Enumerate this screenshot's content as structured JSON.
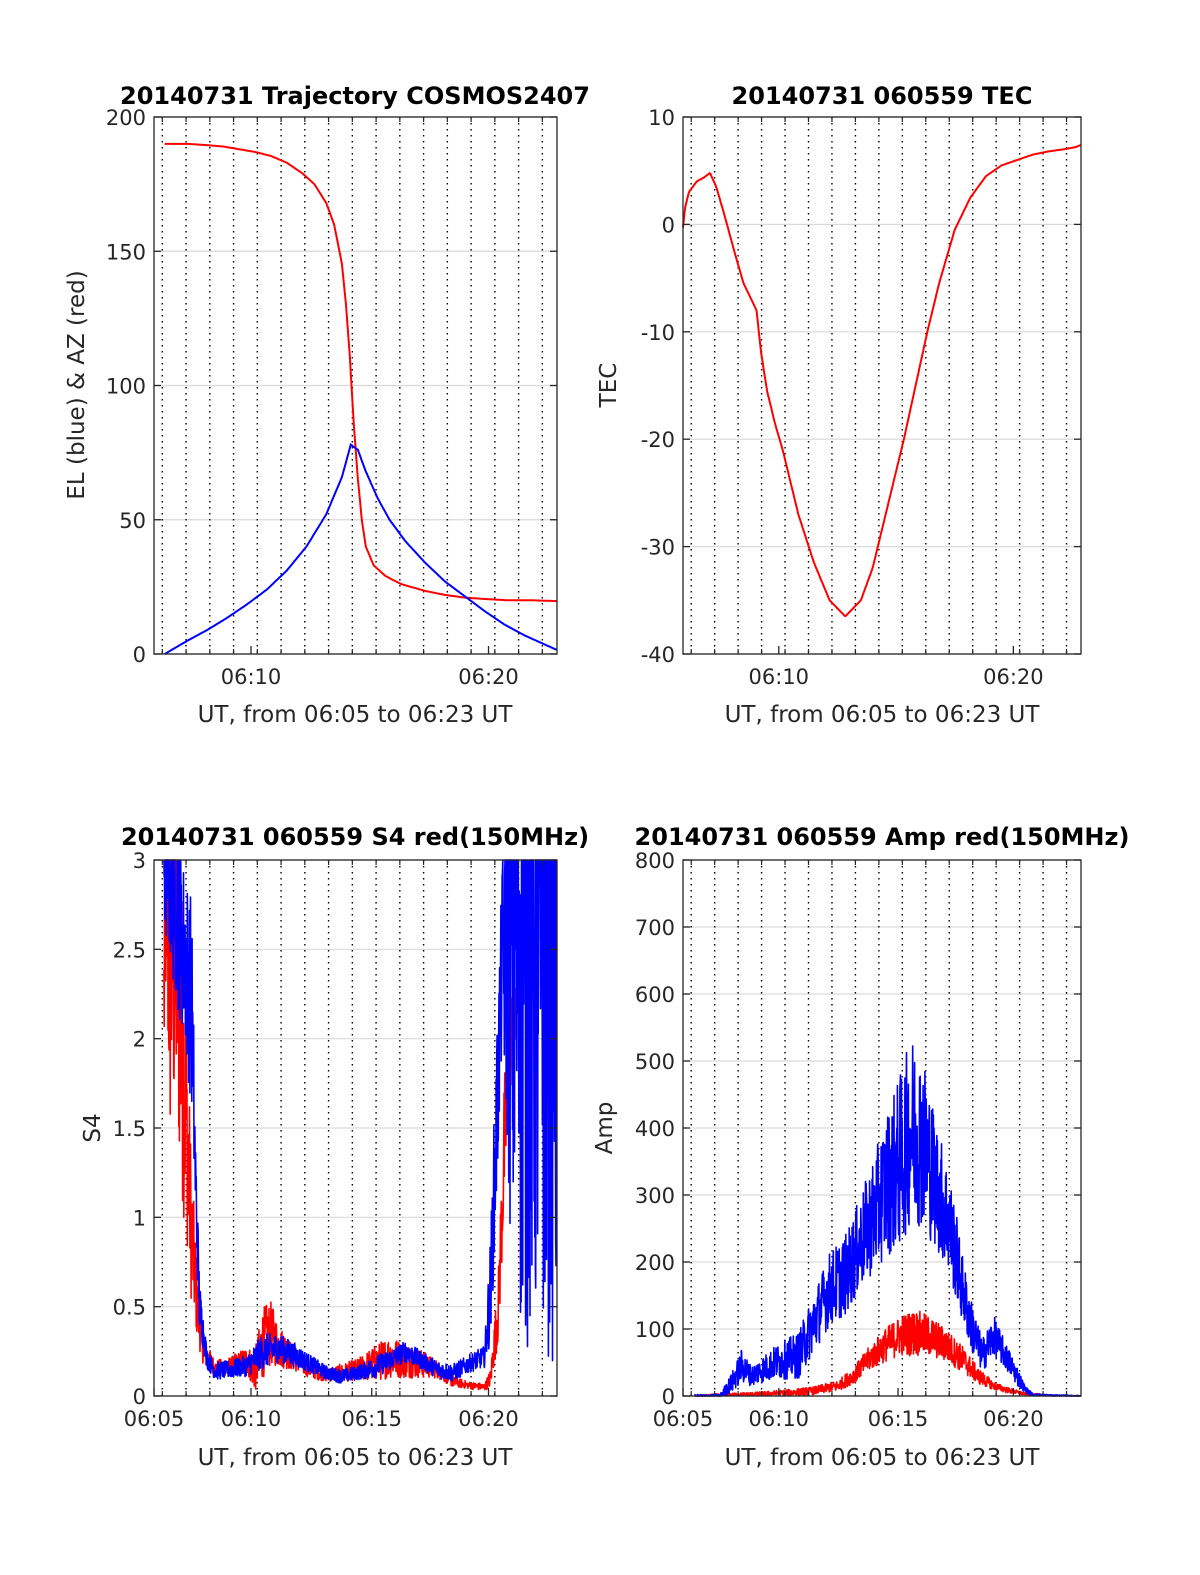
{
  "figure": {
    "colors": {
      "el": "#0000ff",
      "az": "#ff0000",
      "tec": "#ff0000",
      "series_red": "#ff0000",
      "series_blue": "#0000ff",
      "grid": "#d9d9d9",
      "minor_grid": "#000000"
    }
  },
  "chart_data": [
    {
      "id": "trajectory",
      "type": "line",
      "title": "20140731 Trajectory COSMOS2407",
      "xlabel": "UT, from 06:05 to 06:23 UT",
      "ylabel": "EL (blue) & AZ (red)",
      "xlim": [
        365,
        1383
      ],
      "ylim": [
        0,
        200
      ],
      "xticks": [
        {
          "v": 610,
          "label": "06:10"
        },
        {
          "v": 1210,
          "label": "06:20"
        }
      ],
      "yticks": [
        {
          "v": 0,
          "label": "0"
        },
        {
          "v": 50,
          "label": "50"
        },
        {
          "v": 100,
          "label": "100"
        },
        {
          "v": 150,
          "label": "150"
        },
        {
          "v": 200,
          "label": "200"
        }
      ],
      "minor_x": [
        386,
        446,
        506,
        566,
        626,
        686,
        746,
        806,
        866,
        926,
        986,
        1046,
        1106,
        1166,
        1226,
        1286,
        1346
      ],
      "grid": "on",
      "series": [
        {
          "name": "AZ",
          "color": "#ff0000",
          "style": "line",
          "x": [
            392,
            450,
            500,
            540,
            580,
            620,
            660,
            700,
            740,
            770,
            800,
            820,
            840,
            850,
            860,
            870,
            880,
            890,
            900,
            920,
            950,
            990,
            1050,
            1100,
            1150,
            1200,
            1260,
            1320,
            1383
          ],
          "y": [
            190,
            190,
            189.5,
            189,
            188,
            187,
            185.5,
            183,
            179,
            175,
            168,
            160,
            145,
            130,
            110,
            85,
            65,
            50,
            40,
            33,
            29,
            26,
            23.5,
            22,
            21,
            20.5,
            20,
            20,
            19.7
          ]
        },
        {
          "name": "EL",
          "color": "#0000ff",
          "style": "line",
          "x": [
            392,
            450,
            500,
            550,
            600,
            650,
            700,
            750,
            800,
            840,
            862,
            880,
            900,
            930,
            960,
            1000,
            1050,
            1100,
            1150,
            1200,
            1250,
            1300,
            1383
          ],
          "y": [
            0,
            5,
            9,
            13.5,
            18.5,
            24,
            31,
            40,
            52,
            66,
            78,
            76,
            68,
            58,
            50,
            42,
            34,
            27,
            21.5,
            16,
            11,
            7,
            1.5
          ]
        }
      ]
    },
    {
      "id": "tec",
      "type": "line",
      "title": "20140731 060559 TEC",
      "xlabel": "UT, from 06:05 to 06:23 UT",
      "ylabel": "TEC",
      "xlim": [
        365,
        1383
      ],
      "ylim": [
        -40,
        10
      ],
      "xticks": [
        {
          "v": 610,
          "label": "06:10"
        },
        {
          "v": 1210,
          "label": "06:20"
        }
      ],
      "yticks": [
        {
          "v": -40,
          "label": "-40"
        },
        {
          "v": -30,
          "label": "-30"
        },
        {
          "v": -20,
          "label": "-20"
        },
        {
          "v": -10,
          "label": "-10"
        },
        {
          "v": 0,
          "label": "0"
        },
        {
          "v": 10,
          "label": "10"
        }
      ],
      "minor_x": [
        386,
        446,
        506,
        566,
        626,
        686,
        746,
        806,
        866,
        926,
        986,
        1046,
        1106,
        1166,
        1226,
        1286,
        1346
      ],
      "grid": "on",
      "series": [
        {
          "name": "TEC",
          "color": "#ff0000",
          "style": "line",
          "x": [
            365,
            370,
            380,
            400,
            420,
            434,
            450,
            470,
            500,
            520,
            540,
            553,
            565,
            580,
            600,
            620,
            640,
            660,
            700,
            740,
            780,
            820,
            850,
            870,
            890,
            910,
            930,
            960,
            990,
            1020,
            1060,
            1100,
            1140,
            1180,
            1220,
            1260,
            1300,
            1340,
            1370,
            1383
          ],
          "y": [
            -0.3,
            1.5,
            3,
            4,
            4.4,
            4.8,
            3.5,
            1,
            -3,
            -5.5,
            -7,
            -8,
            -12,
            -15.5,
            -18.5,
            -21,
            -24,
            -27,
            -31.5,
            -35,
            -36.5,
            -35,
            -32,
            -29,
            -26,
            -23,
            -20,
            -15,
            -10,
            -5.5,
            -0.5,
            2.5,
            4.5,
            5.5,
            6,
            6.5,
            6.8,
            7,
            7.2,
            7.4
          ]
        }
      ]
    },
    {
      "id": "s4",
      "type": "line",
      "title": "20140731 060559 S4 red(150MHz)",
      "xlabel": "UT, from 06:05 to 06:23 UT",
      "ylabel": "S4",
      "xlim": [
        365,
        1383
      ],
      "ylim": [
        0,
        3
      ],
      "xticks": [
        {
          "v": 365,
          "label": "06:05"
        },
        {
          "v": 610,
          "label": "06:10"
        },
        {
          "v": 915,
          "label": "06:15"
        },
        {
          "v": 1210,
          "label": "06:20"
        }
      ],
      "yticks": [
        {
          "v": 0,
          "label": "0"
        },
        {
          "v": 0.5,
          "label": "0.5"
        },
        {
          "v": 1,
          "label": "1"
        },
        {
          "v": 1.5,
          "label": "1.5"
        },
        {
          "v": 2,
          "label": "2"
        },
        {
          "v": 2.5,
          "label": "2.5"
        },
        {
          "v": 3,
          "label": "3"
        }
      ],
      "minor_x": [
        386,
        446,
        506,
        566,
        626,
        686,
        746,
        806,
        866,
        926,
        986,
        1046,
        1106,
        1166,
        1226,
        1286,
        1346
      ],
      "grid": "on",
      "series": [
        {
          "name": "red",
          "color": "#ff0000",
          "style": "noisy",
          "x": [
            390,
            395,
            405,
            420,
            435,
            450,
            460,
            475,
            490,
            520,
            560,
            600,
            620,
            640,
            660,
            680,
            700,
            720,
            760,
            800,
            840,
            880,
            920,
            960,
            1000,
            1040,
            1080,
            1120,
            1160,
            1200,
            1215,
            1235,
            1250,
            1265,
            1280
          ],
          "y": [
            2.2,
            3,
            2.5,
            2.5,
            2,
            1.4,
            0.9,
            0.5,
            0.25,
            0.15,
            0.17,
            0.2,
            0.14,
            0.3,
            0.35,
            0.28,
            0.25,
            0.2,
            0.15,
            0.12,
            0.13,
            0.15,
            0.18,
            0.22,
            0.2,
            0.18,
            0.15,
            0.08,
            0.06,
            0.05,
            0.1,
            0.5,
            1.4,
            2,
            2.1
          ],
          "amp": [
            0.6,
            1,
            1.2,
            1,
            0.9,
            0.6,
            0.4,
            0.2,
            0.08,
            0.05,
            0.05,
            0.08,
            0.12,
            0.2,
            0.18,
            0.12,
            0.1,
            0.06,
            0.05,
            0.04,
            0.05,
            0.06,
            0.1,
            0.12,
            0.1,
            0.08,
            0.05,
            0.03,
            0.02,
            0.02,
            0.05,
            0.2,
            0.4,
            0.3,
            0.2
          ]
        },
        {
          "name": "blue",
          "color": "#0000ff",
          "style": "noisy",
          "x": [
            390,
            400,
            420,
            440,
            460,
            470,
            480,
            500,
            520,
            560,
            600,
            640,
            680,
            720,
            760,
            800,
            840,
            880,
            920,
            960,
            1000,
            1040,
            1080,
            1120,
            1160,
            1200,
            1215,
            1230,
            1245,
            1270,
            1300,
            1340,
            1383
          ],
          "y": [
            3,
            3,
            2.8,
            2.5,
            2.2,
            1.2,
            0.5,
            0.2,
            0.14,
            0.15,
            0.17,
            0.25,
            0.27,
            0.23,
            0.18,
            0.13,
            0.11,
            0.13,
            0.16,
            0.2,
            0.25,
            0.2,
            0.15,
            0.13,
            0.18,
            0.22,
            0.6,
            1.5,
            2.5,
            2.8,
            2.7,
            2.8,
            2.9
          ],
          "amp": [
            0.5,
            0.5,
            0.6,
            0.5,
            0.6,
            0.3,
            0.15,
            0.05,
            0.05,
            0.05,
            0.06,
            0.1,
            0.08,
            0.07,
            0.05,
            0.04,
            0.04,
            0.04,
            0.06,
            0.06,
            0.06,
            0.05,
            0.05,
            0.05,
            0.05,
            0.06,
            0.3,
            0.5,
            0.5,
            2.2,
            2.5,
            2.5,
            2.8
          ]
        }
      ]
    },
    {
      "id": "amp",
      "type": "line",
      "title": "20140731 060559 Amp red(150MHz)",
      "xlabel": "UT, from 06:05 to 06:23 UT",
      "ylabel": "Amp",
      "xlim": [
        365,
        1383
      ],
      "ylim": [
        0,
        800
      ],
      "xticks": [
        {
          "v": 365,
          "label": "06:05"
        },
        {
          "v": 610,
          "label": "06:10"
        },
        {
          "v": 915,
          "label": "06:15"
        },
        {
          "v": 1210,
          "label": "06:20"
        }
      ],
      "yticks": [
        {
          "v": 0,
          "label": "0"
        },
        {
          "v": 100,
          "label": "100"
        },
        {
          "v": 200,
          "label": "200"
        },
        {
          "v": 300,
          "label": "300"
        },
        {
          "v": 400,
          "label": "400"
        },
        {
          "v": 500,
          "label": "500"
        },
        {
          "v": 600,
          "label": "600"
        },
        {
          "v": 700,
          "label": "700"
        },
        {
          "v": 800,
          "label": "800"
        }
      ],
      "minor_x": [
        386,
        446,
        506,
        566,
        626,
        686,
        746,
        806,
        866,
        926,
        986,
        1046,
        1106,
        1166,
        1226,
        1286,
        1346
      ],
      "grid": "on",
      "series": [
        {
          "name": "red",
          "color": "#ff0000",
          "style": "noisy",
          "x": [
            395,
            480,
            560,
            640,
            700,
            760,
            800,
            840,
            880,
            920,
            960,
            1000,
            1040,
            1080,
            1120,
            1160,
            1200,
            1240,
            1300,
            1383
          ],
          "y": [
            0,
            2,
            3,
            5,
            8,
            15,
            30,
            55,
            75,
            90,
            95,
            88,
            75,
            55,
            30,
            15,
            8,
            3,
            1,
            0
          ],
          "amp": [
            1,
            2,
            3,
            5,
            6,
            8,
            12,
            18,
            25,
            30,
            35,
            30,
            25,
            20,
            12,
            6,
            4,
            2,
            1,
            0
          ]
        },
        {
          "name": "blue",
          "color": "#0000ff",
          "style": "noisy",
          "x": [
            395,
            460,
            490,
            515,
            540,
            570,
            600,
            630,
            660,
            700,
            740,
            780,
            820,
            860,
            890,
            920,
            950,
            980,
            1010,
            1040,
            1060,
            1080,
            1100,
            1130,
            1160,
            1190,
            1220,
            1240,
            1260,
            1300,
            1383
          ],
          "y": [
            0,
            0,
            20,
            45,
            30,
            40,
            50,
            55,
            60,
            110,
            160,
            180,
            230,
            280,
            320,
            350,
            400,
            380,
            320,
            270,
            220,
            160,
            110,
            60,
            90,
            60,
            30,
            10,
            2,
            1,
            0
          ],
          "amp": [
            2,
            3,
            15,
            25,
            15,
            20,
            25,
            30,
            35,
            45,
            55,
            60,
            70,
            90,
            110,
            130,
            140,
            130,
            100,
            80,
            70,
            50,
            40,
            25,
            30,
            20,
            15,
            5,
            2,
            1,
            1
          ]
        }
      ]
    }
  ]
}
